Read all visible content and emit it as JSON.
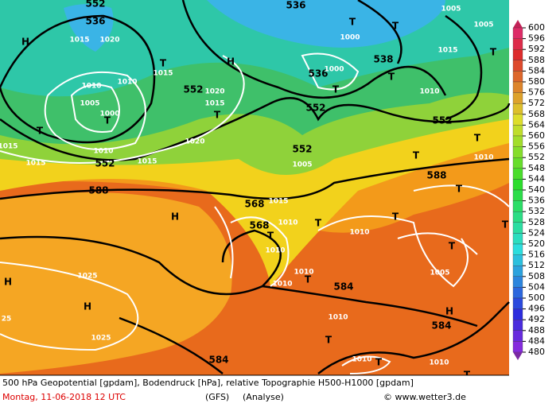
{
  "map_labels": [
    "552",
    "536",
    "1015",
    "1020",
    "H",
    "T",
    "1015",
    "H",
    "1010",
    "1010",
    "552",
    "1020",
    "1015",
    "1005",
    "1000",
    "T",
    "T",
    "T",
    "1010",
    "552",
    "1015",
    "1015",
    "1020",
    "1015",
    "536",
    "T",
    "1000",
    "T",
    "1005",
    "1005",
    "1015",
    "T",
    "538",
    "536",
    "1000",
    "T",
    "T",
    "552",
    "1010",
    "552",
    "552",
    "1005",
    "T",
    "1010",
    "T",
    "588",
    "588",
    "T",
    "H",
    "568",
    "1015",
    "1010",
    "568",
    "T",
    "T",
    "T",
    "1010",
    "1010",
    "T",
    "T",
    "1005",
    "1010",
    "T",
    "1010",
    "584",
    "H",
    "1025",
    "H",
    "H",
    "584",
    "1010",
    "25",
    "1025",
    "T",
    "584",
    "1010",
    "T",
    "1010",
    "T"
  ],
  "legend": {
    "labels": [
      600,
      596,
      592,
      588,
      584,
      580,
      576,
      572,
      568,
      564,
      560,
      556,
      552,
      548,
      544,
      540,
      536,
      532,
      528,
      524,
      520,
      516,
      512,
      508,
      504,
      500,
      496,
      492,
      488,
      484,
      480
    ]
  },
  "footer": {
    "description": "500 hPa Geopotential [gpdam], Bodendruck [hPa], relative Topographie H500-H1000 [gpdam]",
    "date": "Montag, 11-06-2018  12 UTC",
    "model": "(GFS)",
    "run": "(Analyse)",
    "copyright": "© www.wetter3.de"
  }
}
